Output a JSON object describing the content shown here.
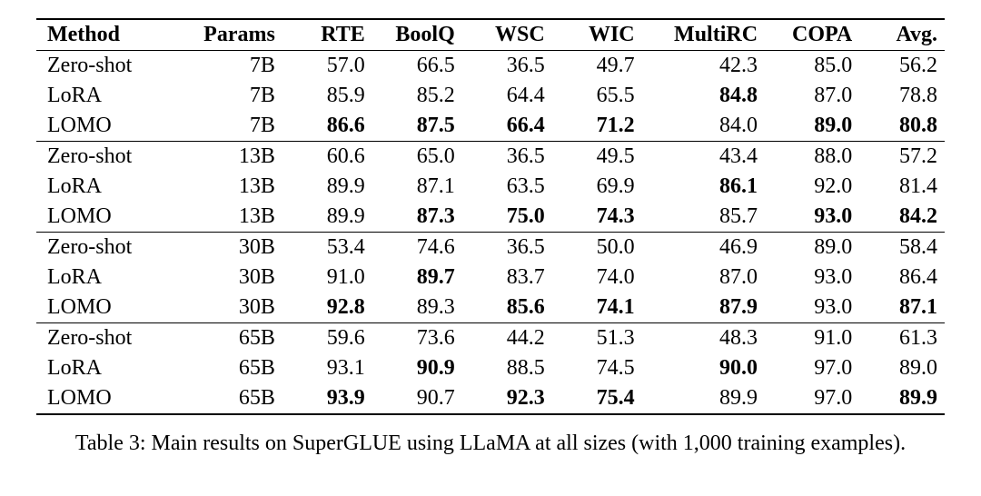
{
  "table": {
    "columns": [
      "Method",
      "Params",
      "RTE",
      "BoolQ",
      "WSC",
      "WIC",
      "MultiRC",
      "COPA",
      "Avg."
    ],
    "groups": [
      {
        "rows": [
          {
            "cells": [
              "Zero-shot",
              "7B",
              "57.0",
              "66.5",
              "36.5",
              "49.7",
              "42.3",
              "85.0",
              "56.2"
            ],
            "bold": [
              false,
              false,
              false,
              false,
              false,
              false,
              false,
              false,
              false
            ]
          },
          {
            "cells": [
              "LoRA",
              "7B",
              "85.9",
              "85.2",
              "64.4",
              "65.5",
              "84.8",
              "87.0",
              "78.8"
            ],
            "bold": [
              false,
              false,
              false,
              false,
              false,
              false,
              true,
              false,
              false
            ]
          },
          {
            "cells": [
              "LOMO",
              "7B",
              "86.6",
              "87.5",
              "66.4",
              "71.2",
              "84.0",
              "89.0",
              "80.8"
            ],
            "bold": [
              false,
              false,
              true,
              true,
              true,
              true,
              false,
              true,
              true
            ]
          }
        ]
      },
      {
        "rows": [
          {
            "cells": [
              "Zero-shot",
              "13B",
              "60.6",
              "65.0",
              "36.5",
              "49.5",
              "43.4",
              "88.0",
              "57.2"
            ],
            "bold": [
              false,
              false,
              false,
              false,
              false,
              false,
              false,
              false,
              false
            ]
          },
          {
            "cells": [
              "LoRA",
              "13B",
              "89.9",
              "87.1",
              "63.5",
              "69.9",
              "86.1",
              "92.0",
              "81.4"
            ],
            "bold": [
              false,
              false,
              false,
              false,
              false,
              false,
              true,
              false,
              false
            ]
          },
          {
            "cells": [
              "LOMO",
              "13B",
              "89.9",
              "87.3",
              "75.0",
              "74.3",
              "85.7",
              "93.0",
              "84.2"
            ],
            "bold": [
              false,
              false,
              false,
              true,
              true,
              true,
              false,
              true,
              true
            ]
          }
        ]
      },
      {
        "rows": [
          {
            "cells": [
              "Zero-shot",
              "30B",
              "53.4",
              "74.6",
              "36.5",
              "50.0",
              "46.9",
              "89.0",
              "58.4"
            ],
            "bold": [
              false,
              false,
              false,
              false,
              false,
              false,
              false,
              false,
              false
            ]
          },
          {
            "cells": [
              "LoRA",
              "30B",
              "91.0",
              "89.7",
              "83.7",
              "74.0",
              "87.0",
              "93.0",
              "86.4"
            ],
            "bold": [
              false,
              false,
              false,
              true,
              false,
              false,
              false,
              false,
              false
            ]
          },
          {
            "cells": [
              "LOMO",
              "30B",
              "92.8",
              "89.3",
              "85.6",
              "74.1",
              "87.9",
              "93.0",
              "87.1"
            ],
            "bold": [
              false,
              false,
              true,
              false,
              true,
              true,
              true,
              false,
              true
            ]
          }
        ]
      },
      {
        "rows": [
          {
            "cells": [
              "Zero-shot",
              "65B",
              "59.6",
              "73.6",
              "44.2",
              "51.3",
              "48.3",
              "91.0",
              "61.3"
            ],
            "bold": [
              false,
              false,
              false,
              false,
              false,
              false,
              false,
              false,
              false
            ]
          },
          {
            "cells": [
              "LoRA",
              "65B",
              "93.1",
              "90.9",
              "88.5",
              "74.5",
              "90.0",
              "97.0",
              "89.0"
            ],
            "bold": [
              false,
              false,
              false,
              true,
              false,
              false,
              true,
              false,
              false
            ]
          },
          {
            "cells": [
              "LOMO",
              "65B",
              "93.9",
              "90.7",
              "92.3",
              "75.4",
              "89.9",
              "97.0",
              "89.9"
            ],
            "bold": [
              false,
              false,
              true,
              false,
              true,
              true,
              false,
              false,
              true
            ]
          }
        ]
      }
    ],
    "colors": {
      "text": "#000000",
      "background": "#ffffff",
      "rule": "#000000"
    },
    "font": {
      "family": "Times New Roman",
      "body_pt": 18,
      "header_weight": "bold"
    }
  },
  "caption": "Table 3: Main results on SuperGLUE using LLaMA at all sizes (with 1,000 training examples)."
}
